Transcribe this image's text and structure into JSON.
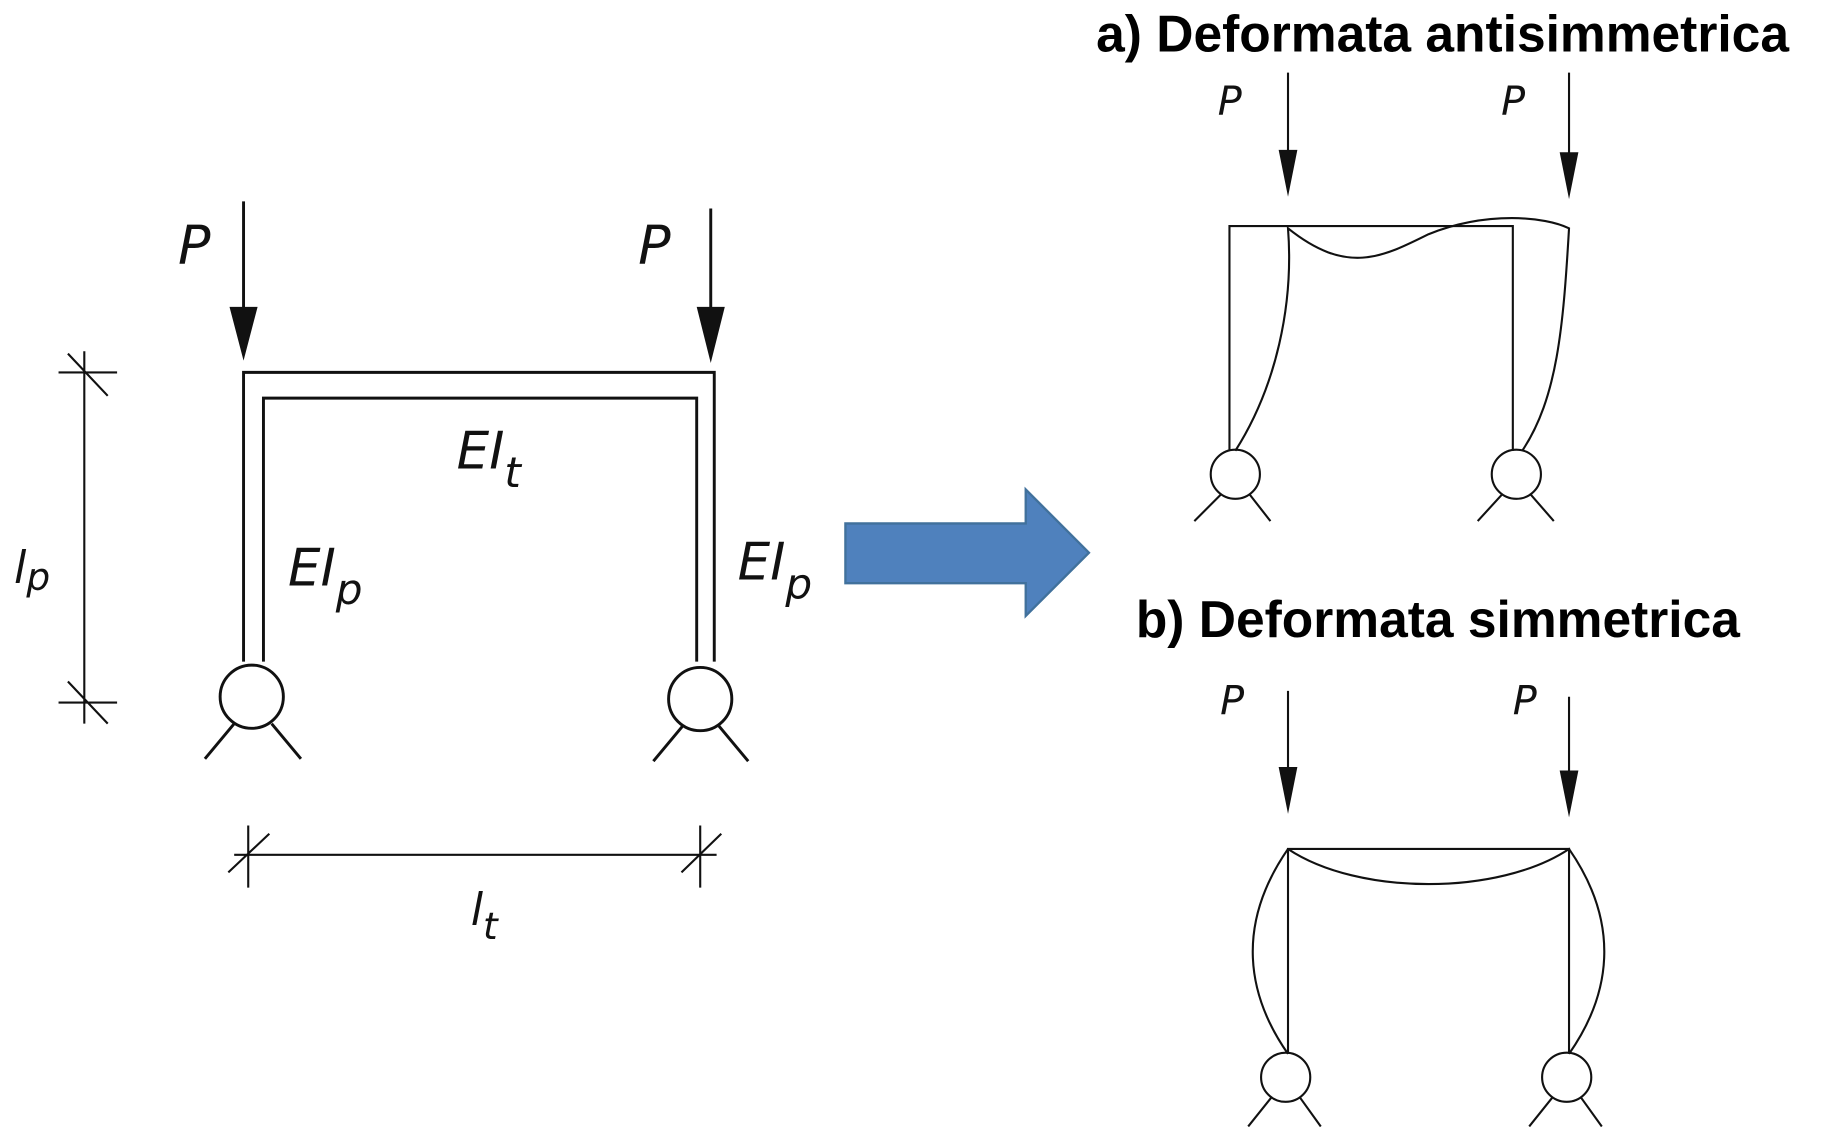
{
  "left_frame": {
    "loads": [
      "P",
      "P"
    ],
    "beam_label": {
      "main": "EI",
      "sub": "t"
    },
    "column_labels": [
      {
        "main": "EI",
        "sub": "p"
      },
      {
        "main": "EI",
        "sub": "p"
      }
    ],
    "height_label": {
      "main": "l",
      "sub": "p"
    },
    "span_label": {
      "main": "l",
      "sub": "t"
    }
  },
  "antisymmetric": {
    "title": "a) Deformata antisimmetrica",
    "loads": [
      "P",
      "P"
    ]
  },
  "symmetric": {
    "title": "b) Deformata simmetrica",
    "loads": [
      "P",
      "P"
    ]
  }
}
